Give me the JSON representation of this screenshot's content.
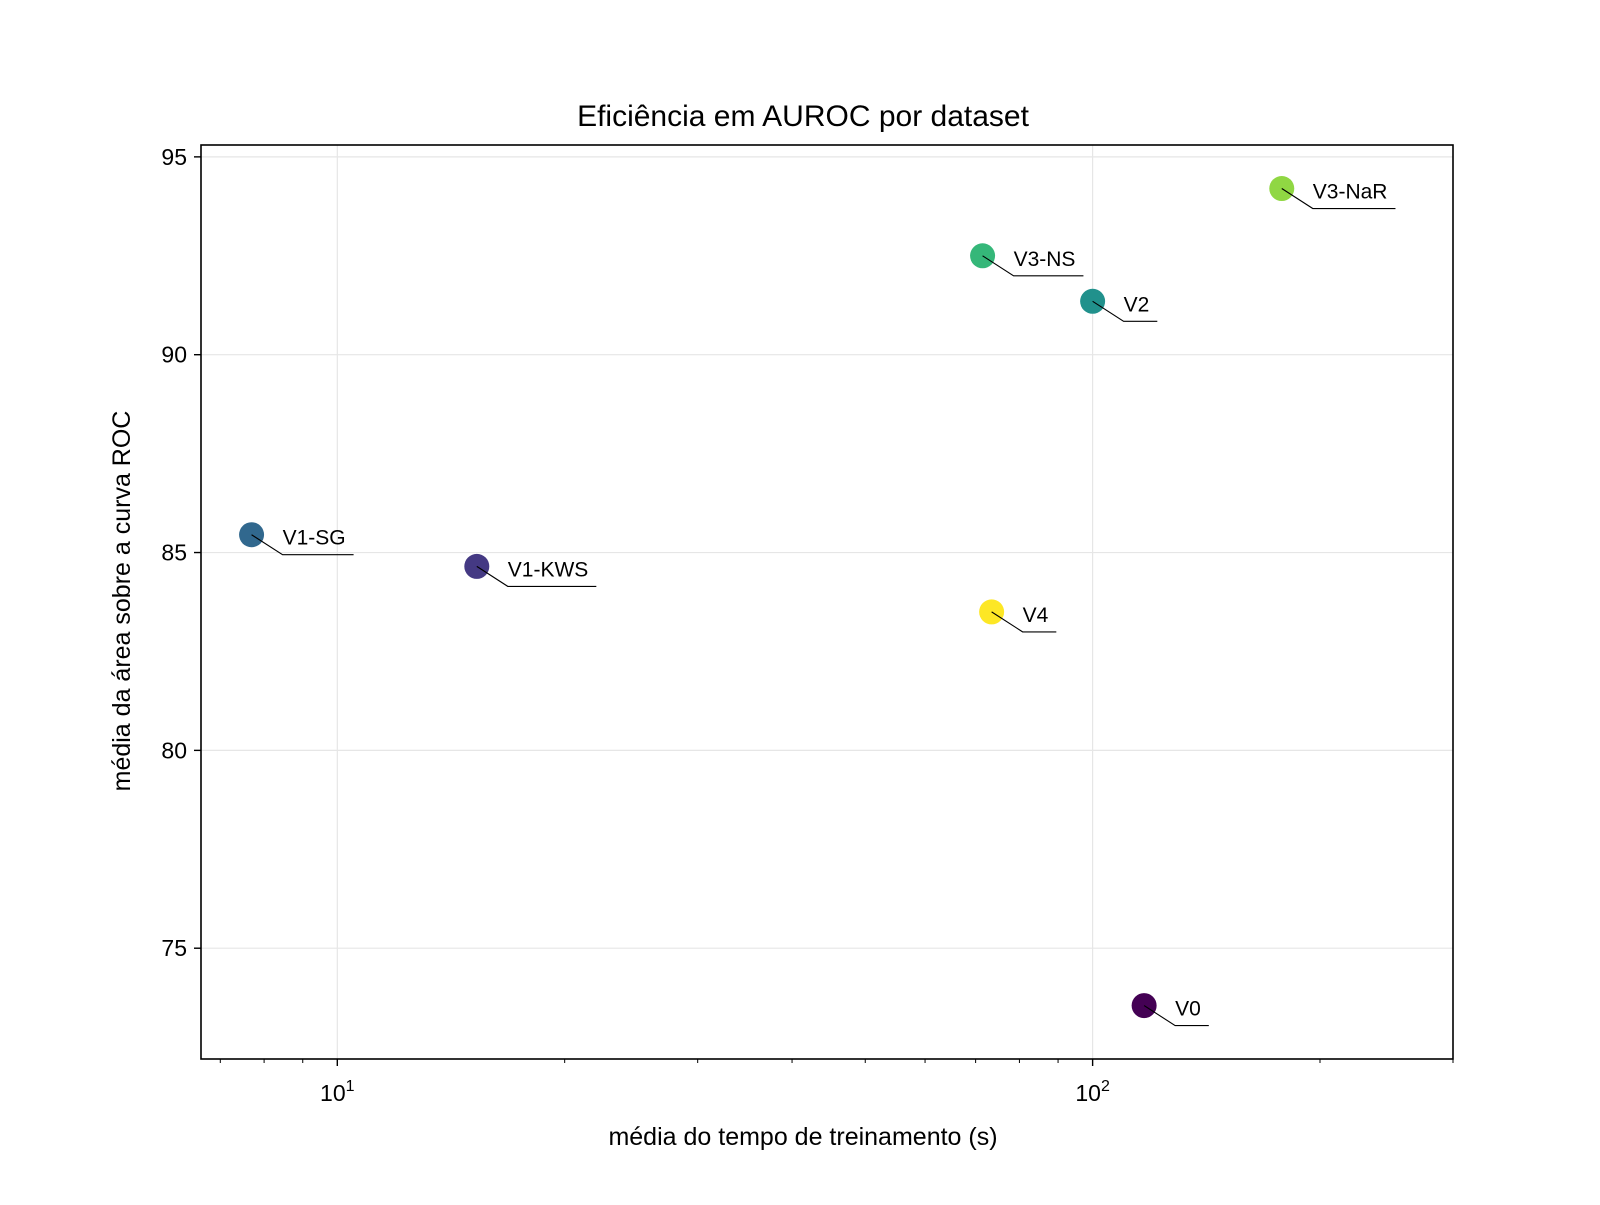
{
  "chart_data": {
    "type": "scatter",
    "title": "Eficiência em AUROC por dataset",
    "xlabel": "média do tempo de treinamento (s)",
    "ylabel": "média da área sobre a curva ROC",
    "xscale": "log",
    "xlim": [
      6.6,
      300
    ],
    "ylim": [
      72.2,
      95.3
    ],
    "grid": true,
    "xticks": [
      {
        "value": 10,
        "base": "10",
        "exponent": "1"
      },
      {
        "value": 100,
        "base": "10",
        "exponent": "2"
      }
    ],
    "yticks": [
      75,
      80,
      85,
      90,
      95
    ],
    "points": [
      {
        "label": "V1-SG",
        "x": 7.7,
        "y": 85.45,
        "color": "#31688e"
      },
      {
        "label": "V1-KWS",
        "x": 15.3,
        "y": 84.65,
        "color": "#443983"
      },
      {
        "label": "V3-NS",
        "x": 71.5,
        "y": 92.5,
        "color": "#35b779"
      },
      {
        "label": "V2",
        "x": 100,
        "y": 91.35,
        "color": "#21918c"
      },
      {
        "label": "V4",
        "x": 73.5,
        "y": 83.5,
        "color": "#fde725"
      },
      {
        "label": "V3-NaR",
        "x": 178,
        "y": 94.2,
        "color": "#90d743"
      },
      {
        "label": "V0",
        "x": 117,
        "y": 73.55,
        "color": "#440154"
      }
    ]
  }
}
